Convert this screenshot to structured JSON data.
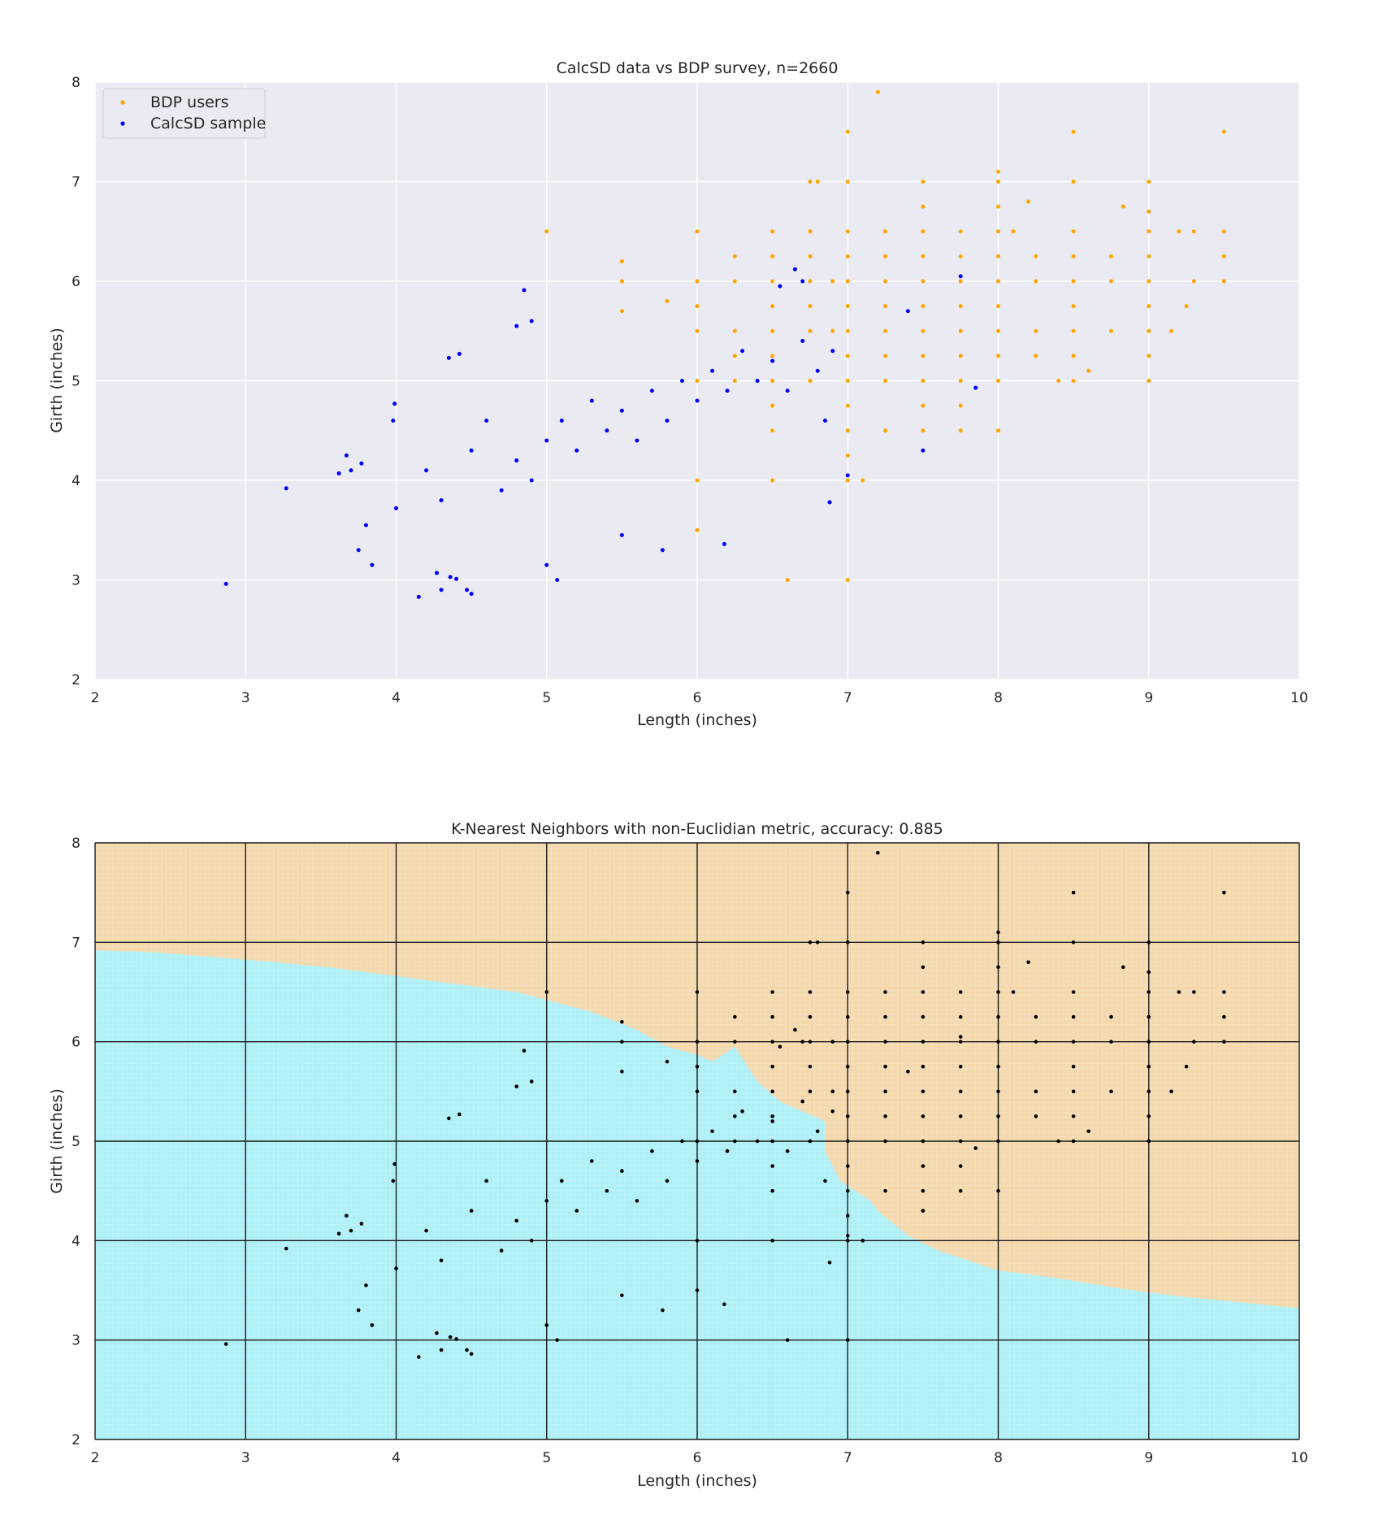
{
  "chart_data": [
    {
      "type": "scatter",
      "title": "CalcSD data vs BDP survey, n=2660",
      "xlabel": "Length (inches)",
      "ylabel": "Girth (inches)",
      "xlim": [
        2,
        10
      ],
      "ylim": [
        2,
        8
      ],
      "xticks": [
        "2",
        "3",
        "4",
        "5",
        "6",
        "7",
        "8",
        "9",
        "10"
      ],
      "yticks": [
        "2",
        "3",
        "4",
        "5",
        "6",
        "7",
        "8"
      ],
      "grid": true,
      "legend_position": "top-left",
      "series": [
        {
          "name": "BDP users",
          "color": "#ffa500",
          "points": [
            [
              5.0,
              6.5
            ],
            [
              5.5,
              6.2
            ],
            [
              5.5,
              6.0
            ],
            [
              5.5,
              5.7
            ],
            [
              5.8,
              5.8
            ],
            [
              6.0,
              6.5
            ],
            [
              6.0,
              6.0
            ],
            [
              6.0,
              5.75
            ],
            [
              6.0,
              5.5
            ],
            [
              6.0,
              5.0
            ],
            [
              6.0,
              4.0
            ],
            [
              6.0,
              3.5
            ],
            [
              6.25,
              6.25
            ],
            [
              6.25,
              6.0
            ],
            [
              6.25,
              5.5
            ],
            [
              6.25,
              5.25
            ],
            [
              6.25,
              5.0
            ],
            [
              6.5,
              6.5
            ],
            [
              6.5,
              6.25
            ],
            [
              6.5,
              6.0
            ],
            [
              6.5,
              5.75
            ],
            [
              6.5,
              5.5
            ],
            [
              6.5,
              5.25
            ],
            [
              6.5,
              5.0
            ],
            [
              6.5,
              4.75
            ],
            [
              6.5,
              4.5
            ],
            [
              6.5,
              4.0
            ],
            [
              6.6,
              3.0
            ],
            [
              6.75,
              7.0
            ],
            [
              6.75,
              6.5
            ],
            [
              6.75,
              6.25
            ],
            [
              6.75,
              6.0
            ],
            [
              6.75,
              5.75
            ],
            [
              6.75,
              5.5
            ],
            [
              6.75,
              5.0
            ],
            [
              6.8,
              7.0
            ],
            [
              6.9,
              6.0
            ],
            [
              6.9,
              5.5
            ],
            [
              7.0,
              7.5
            ],
            [
              7.0,
              7.0
            ],
            [
              7.0,
              6.5
            ],
            [
              7.0,
              6.25
            ],
            [
              7.0,
              6.0
            ],
            [
              7.0,
              5.75
            ],
            [
              7.0,
              5.5
            ],
            [
              7.0,
              5.25
            ],
            [
              7.0,
              5.0
            ],
            [
              7.0,
              4.75
            ],
            [
              7.0,
              4.5
            ],
            [
              7.0,
              4.25
            ],
            [
              7.0,
              4.0
            ],
            [
              7.0,
              3.0
            ],
            [
              7.1,
              4.0
            ],
            [
              7.2,
              7.9
            ],
            [
              7.25,
              6.5
            ],
            [
              7.25,
              6.25
            ],
            [
              7.25,
              6.0
            ],
            [
              7.25,
              5.75
            ],
            [
              7.25,
              5.5
            ],
            [
              7.25,
              5.25
            ],
            [
              7.25,
              5.0
            ],
            [
              7.25,
              4.5
            ],
            [
              7.5,
              7.0
            ],
            [
              7.5,
              6.75
            ],
            [
              7.5,
              6.5
            ],
            [
              7.5,
              6.25
            ],
            [
              7.5,
              6.0
            ],
            [
              7.5,
              5.75
            ],
            [
              7.5,
              5.5
            ],
            [
              7.5,
              5.25
            ],
            [
              7.5,
              5.0
            ],
            [
              7.5,
              4.75
            ],
            [
              7.5,
              4.5
            ],
            [
              7.5,
              4.3
            ],
            [
              7.75,
              6.5
            ],
            [
              7.75,
              6.25
            ],
            [
              7.75,
              6.0
            ],
            [
              7.75,
              5.75
            ],
            [
              7.75,
              5.5
            ],
            [
              7.75,
              5.25
            ],
            [
              7.75,
              5.0
            ],
            [
              7.75,
              4.75
            ],
            [
              7.75,
              4.5
            ],
            [
              8.0,
              7.1
            ],
            [
              8.0,
              7.0
            ],
            [
              8.0,
              6.75
            ],
            [
              8.0,
              6.5
            ],
            [
              8.0,
              6.25
            ],
            [
              8.0,
              6.0
            ],
            [
              8.0,
              5.75
            ],
            [
              8.0,
              5.5
            ],
            [
              8.0,
              5.25
            ],
            [
              8.0,
              5.0
            ],
            [
              8.0,
              4.5
            ],
            [
              8.1,
              6.5
            ],
            [
              8.2,
              6.8
            ],
            [
              8.25,
              6.25
            ],
            [
              8.25,
              6.0
            ],
            [
              8.25,
              5.5
            ],
            [
              8.25,
              5.25
            ],
            [
              8.4,
              5.0
            ],
            [
              8.5,
              7.5
            ],
            [
              8.5,
              7.0
            ],
            [
              8.5,
              6.5
            ],
            [
              8.5,
              6.25
            ],
            [
              8.5,
              6.0
            ],
            [
              8.5,
              5.75
            ],
            [
              8.5,
              5.5
            ],
            [
              8.5,
              5.25
            ],
            [
              8.5,
              5.0
            ],
            [
              8.6,
              5.1
            ],
            [
              8.75,
              6.25
            ],
            [
              8.75,
              6.0
            ],
            [
              8.75,
              5.5
            ],
            [
              8.83,
              6.75
            ],
            [
              9.0,
              7.0
            ],
            [
              9.0,
              6.7
            ],
            [
              9.0,
              6.5
            ],
            [
              9.0,
              6.25
            ],
            [
              9.0,
              6.0
            ],
            [
              9.0,
              5.75
            ],
            [
              9.0,
              5.5
            ],
            [
              9.0,
              5.25
            ],
            [
              9.0,
              5.0
            ],
            [
              9.15,
              5.5
            ],
            [
              9.2,
              6.5
            ],
            [
              9.25,
              5.75
            ],
            [
              9.3,
              6.5
            ],
            [
              9.3,
              6.0
            ],
            [
              9.5,
              7.5
            ],
            [
              9.5,
              6.5
            ],
            [
              9.5,
              6.25
            ],
            [
              9.5,
              6.0
            ]
          ]
        },
        {
          "name": "CalcSD sample",
          "color": "#0000ff",
          "points": [
            [
              2.87,
              2.96
            ],
            [
              3.27,
              3.92
            ],
            [
              3.62,
              4.07
            ],
            [
              3.67,
              4.25
            ],
            [
              3.7,
              4.1
            ],
            [
              3.75,
              3.3
            ],
            [
              3.77,
              4.17
            ],
            [
              3.8,
              3.55
            ],
            [
              3.84,
              3.15
            ],
            [
              3.98,
              4.6
            ],
            [
              3.99,
              4.77
            ],
            [
              4.0,
              3.72
            ],
            [
              4.15,
              2.83
            ],
            [
              4.27,
              3.07
            ],
            [
              4.3,
              2.9
            ],
            [
              4.36,
              3.03
            ],
            [
              4.4,
              3.01
            ],
            [
              4.47,
              2.9
            ],
            [
              4.5,
              2.86
            ],
            [
              4.35,
              5.23
            ],
            [
              4.42,
              5.27
            ],
            [
              4.85,
              5.91
            ],
            [
              4.8,
              5.55
            ],
            [
              4.9,
              5.6
            ],
            [
              5.07,
              3.0
            ],
            [
              5.0,
              3.15
            ],
            [
              5.5,
              3.45
            ],
            [
              5.77,
              3.3
            ],
            [
              6.18,
              3.36
            ],
            [
              6.55,
              5.95
            ],
            [
              6.65,
              6.12
            ],
            [
              6.7,
              6.0
            ],
            [
              6.85,
              4.6
            ],
            [
              6.88,
              3.78
            ],
            [
              7.0,
              4.05
            ],
            [
              7.5,
              4.3
            ],
            [
              7.75,
              6.05
            ],
            [
              7.85,
              4.93
            ],
            [
              7.4,
              5.7
            ],
            [
              4.2,
              4.1
            ],
            [
              4.3,
              3.8
            ],
            [
              4.5,
              4.3
            ],
            [
              4.6,
              4.6
            ],
            [
              4.7,
              3.9
            ],
            [
              4.8,
              4.2
            ],
            [
              4.9,
              4.0
            ],
            [
              5.0,
              4.4
            ],
            [
              5.1,
              4.6
            ],
            [
              5.2,
              4.3
            ],
            [
              5.3,
              4.8
            ],
            [
              5.4,
              4.5
            ],
            [
              5.5,
              4.7
            ],
            [
              5.6,
              4.4
            ],
            [
              5.7,
              4.9
            ],
            [
              5.8,
              4.6
            ],
            [
              5.9,
              5.0
            ],
            [
              6.0,
              4.8
            ],
            [
              6.1,
              5.1
            ],
            [
              6.2,
              4.9
            ],
            [
              6.3,
              5.3
            ],
            [
              6.4,
              5.0
            ],
            [
              6.5,
              5.2
            ],
            [
              6.6,
              4.9
            ],
            [
              6.7,
              5.4
            ],
            [
              6.8,
              5.1
            ],
            [
              6.9,
              5.3
            ]
          ]
        }
      ]
    },
    {
      "type": "scatter",
      "title": "K-Nearest Neighbors with non-Euclidian metric, accuracy: 0.885",
      "xlabel": "Length (inches)",
      "ylabel": "Girth (inches)",
      "xlim": [
        2,
        10
      ],
      "ylim": [
        2,
        8
      ],
      "xticks": [
        "2",
        "3",
        "4",
        "5",
        "6",
        "7",
        "8",
        "9",
        "10"
      ],
      "yticks": [
        "2",
        "3",
        "4",
        "5",
        "6",
        "7",
        "8"
      ],
      "grid": true,
      "point_color": "#000000",
      "regions": [
        {
          "name": "CalcSD sample",
          "color": "#aef0f6"
        },
        {
          "name": "BDP users",
          "color": "#f5d9ae"
        }
      ],
      "decision_boundary": [
        [
          2.0,
          6.92
        ],
        [
          2.4,
          6.9
        ],
        [
          2.8,
          6.85
        ],
        [
          3.2,
          6.8
        ],
        [
          3.6,
          6.74
        ],
        [
          4.0,
          6.66
        ],
        [
          4.4,
          6.58
        ],
        [
          4.8,
          6.5
        ],
        [
          5.0,
          6.42
        ],
        [
          5.3,
          6.3
        ],
        [
          5.6,
          6.12
        ],
        [
          5.8,
          5.95
        ],
        [
          6.0,
          5.87
        ],
        [
          6.1,
          5.8
        ],
        [
          6.25,
          5.95
        ],
        [
          6.4,
          5.6
        ],
        [
          6.55,
          5.4
        ],
        [
          6.7,
          5.3
        ],
        [
          6.85,
          5.2
        ],
        [
          6.85,
          4.9
        ],
        [
          6.95,
          4.6
        ],
        [
          7.15,
          4.4
        ],
        [
          7.2,
          4.3
        ],
        [
          7.4,
          4.05
        ],
        [
          7.6,
          3.9
        ],
        [
          7.8,
          3.8
        ],
        [
          8.0,
          3.7
        ],
        [
          8.4,
          3.62
        ],
        [
          8.8,
          3.52
        ],
        [
          9.2,
          3.44
        ],
        [
          9.6,
          3.38
        ],
        [
          10.0,
          3.32
        ]
      ]
    }
  ]
}
